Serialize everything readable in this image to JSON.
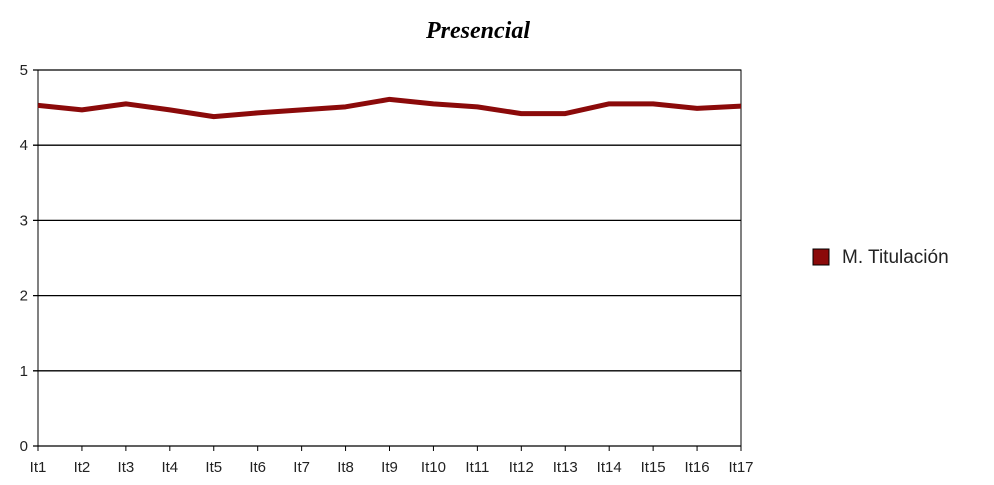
{
  "chart_data": {
    "type": "line",
    "title": "Presencial",
    "categories": [
      "It1",
      "It2",
      "It3",
      "It4",
      "It5",
      "It6",
      "It7",
      "It8",
      "It9",
      "It10",
      "It11",
      "It12",
      "It13",
      "It14",
      "It15",
      "It16",
      "It17"
    ],
    "series": [
      {
        "name": "M. Titulación",
        "color": "#8b0a0a",
        "values": [
          4.53,
          4.47,
          4.55,
          4.47,
          4.38,
          4.43,
          4.47,
          4.51,
          4.61,
          4.55,
          4.51,
          4.42,
          4.42,
          4.55,
          4.55,
          4.49,
          4.52
        ]
      }
    ],
    "ylim": [
      0,
      5
    ],
    "yticks": [
      0,
      1,
      2,
      3,
      4,
      5
    ],
    "grid": true,
    "legend": "right"
  }
}
